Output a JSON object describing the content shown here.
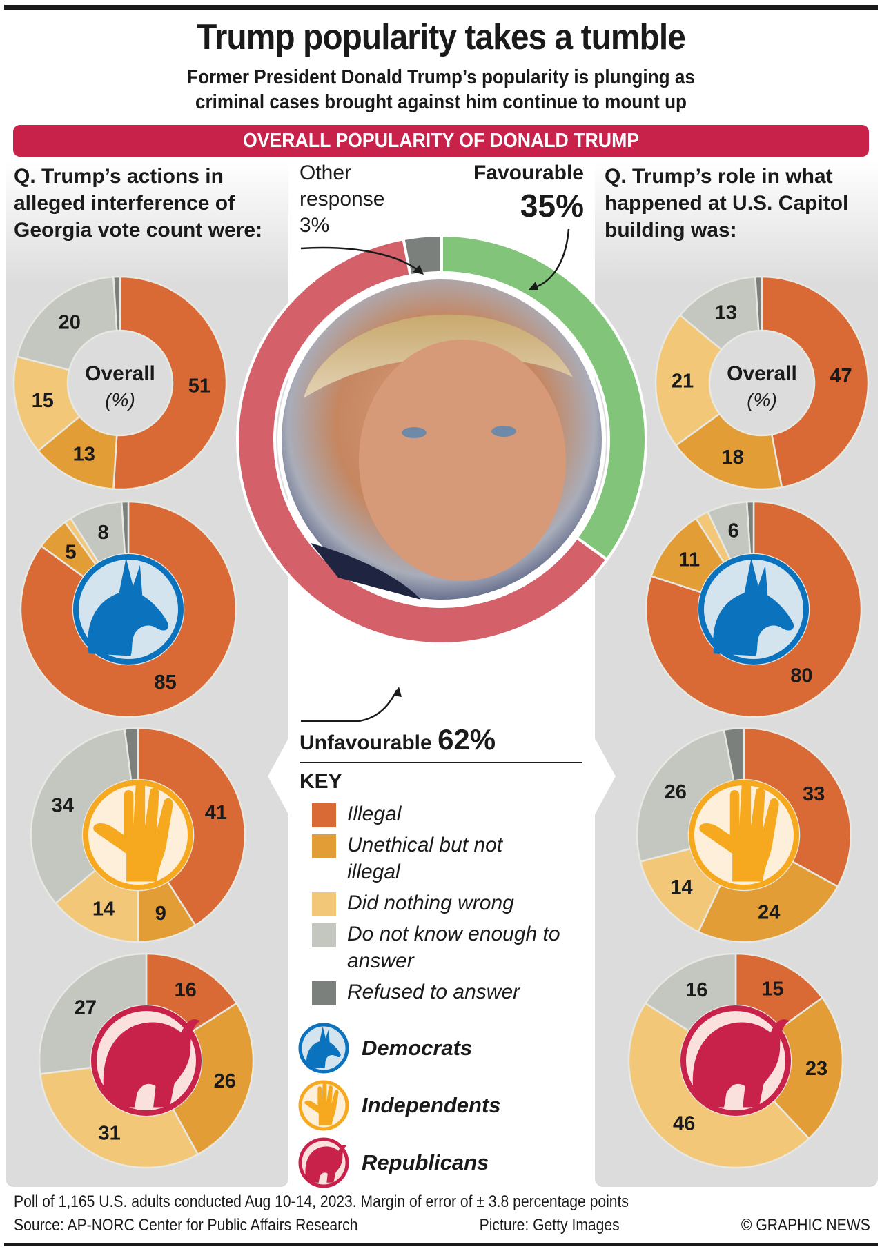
{
  "header": {
    "title": "Trump popularity takes a tumble",
    "subtitle_line1": "Former President Donald Trump’s popularity is plunging as",
    "subtitle_line2": "criminal cases brought against him continue to mount up",
    "banner": "OVERALL POPULARITY OF DONALD TRUMP"
  },
  "questions": {
    "left": "Q. Trump’s actions in alleged interference of Georgia vote count were:",
    "right": "Q. Trump’s role in what happened at U.S. Capitol building was:"
  },
  "center": {
    "other_label": "Other response",
    "other_value": "3%",
    "favourable_label": "Favourable",
    "favourable_value": "35%",
    "unfavourable_label": "Unfavourable",
    "unfavourable_value": "62%",
    "photo_alt": "Portrait of Donald Trump"
  },
  "overall_center": {
    "line1": "Overall",
    "line2": "(%)"
  },
  "key": {
    "title": "KEY",
    "items": [
      {
        "label": "Illegal",
        "color": "#d96a35"
      },
      {
        "label": "Unethical but not illegal",
        "color": "#e39d36"
      },
      {
        "label": "Did nothing wrong",
        "color": "#f2c778"
      },
      {
        "label": "Do not know enough to answer",
        "color": "#c4c7bf"
      },
      {
        "label": "Refused to answer",
        "color": "#7b807d"
      }
    ],
    "parties": [
      {
        "label": "Democrats",
        "icon": "donkey-icon",
        "ring": "#0b72bd",
        "fill": "#d4e4ef"
      },
      {
        "label": "Independents",
        "icon": "raised-hand-icon",
        "ring": "#f6a91f",
        "fill": "#fdefd9"
      },
      {
        "label": "Republicans",
        "icon": "elephant-icon",
        "ring": "#c8214a",
        "fill": "#fbe1de"
      }
    ]
  },
  "footer": {
    "note": "Poll of 1,165 U.S. adults conducted Aug 10-14, 2023. Margin of error of ± 3.8 percentage points",
    "source": "Source: AP-NORC Center for Public Affairs Research",
    "picture": "Picture: Getty Images",
    "credit": "© GRAPHIC NEWS"
  },
  "chart_data": [
    {
      "type": "pie",
      "title": "Overall popularity of Donald Trump",
      "categories": [
        "Favourable",
        "Unfavourable",
        "Other response"
      ],
      "values": [
        35,
        62,
        3
      ],
      "colors": [
        "#82c57a",
        "#d4606a",
        "#7b807d"
      ],
      "unit": "%"
    },
    {
      "type": "pie",
      "title": "Trump's actions in alleged interference of Georgia vote count were:",
      "categories": [
        "Illegal",
        "Unethical but not illegal",
        "Did nothing wrong",
        "Do not know enough to answer",
        "Refused to answer"
      ],
      "series": [
        {
          "name": "Overall",
          "values": [
            51,
            13,
            15,
            20,
            1
          ],
          "labels": [
            "51",
            "13",
            "15",
            "20",
            ""
          ]
        },
        {
          "name": "Democrats",
          "values": [
            85,
            5,
            1,
            8,
            1
          ],
          "labels": [
            "85",
            "5",
            "",
            "8",
            ""
          ]
        },
        {
          "name": "Independents",
          "values": [
            41,
            9,
            14,
            34,
            2
          ],
          "labels": [
            "41",
            "9",
            "14",
            "34",
            ""
          ]
        },
        {
          "name": "Republicans",
          "values": [
            16,
            26,
            31,
            27,
            0
          ],
          "labels": [
            "16",
            "26",
            "31",
            "27",
            ""
          ]
        }
      ],
      "unit": "%"
    },
    {
      "type": "pie",
      "title": "Trump's role in what happened at U.S. Capitol building was:",
      "categories": [
        "Illegal",
        "Unethical but not illegal",
        "Did nothing wrong",
        "Do not know enough to answer",
        "Refused to answer"
      ],
      "series": [
        {
          "name": "Overall",
          "values": [
            47,
            18,
            21,
            13,
            1
          ],
          "labels": [
            "47",
            "18",
            "21",
            "13",
            ""
          ]
        },
        {
          "name": "Democrats",
          "values": [
            80,
            11,
            2,
            6,
            1
          ],
          "labels": [
            "80",
            "11",
            "",
            "6",
            ""
          ]
        },
        {
          "name": "Independents",
          "values": [
            33,
            24,
            14,
            26,
            3
          ],
          "labels": [
            "33",
            "24",
            "14",
            "26",
            ""
          ]
        },
        {
          "name": "Republicans",
          "values": [
            15,
            23,
            46,
            16,
            0
          ],
          "labels": [
            "15",
            "23",
            "46",
            "16",
            ""
          ]
        }
      ],
      "unit": "%"
    }
  ]
}
